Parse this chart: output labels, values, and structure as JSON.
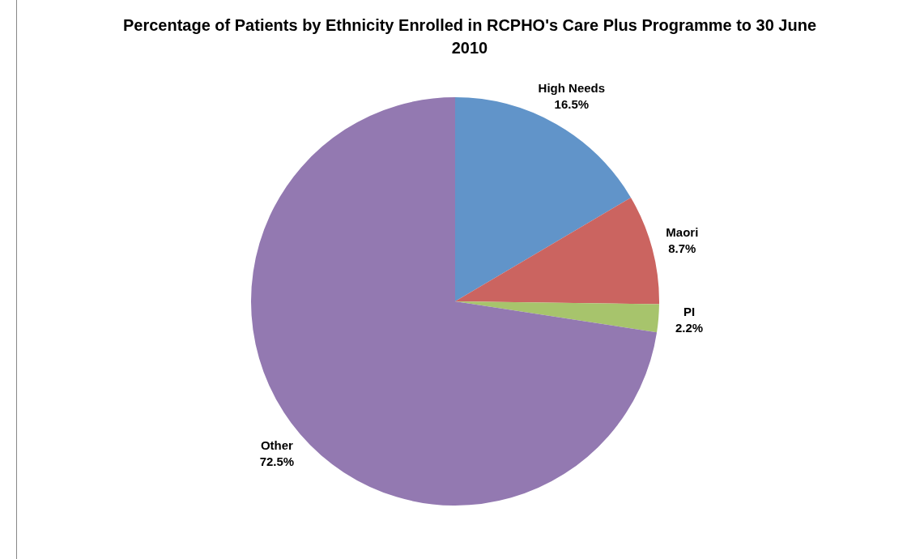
{
  "chart_data": {
    "type": "pie",
    "title": "Percentage of Patients by Ethnicity Enrolled in RCPHO's Care Plus Programme to 30 June 2010",
    "categories": [
      "High Needs",
      "Maori",
      "PI",
      "Other"
    ],
    "values": [
      16.5,
      8.7,
      2.2,
      72.5
    ],
    "colors": [
      "#6194c9",
      "#cb6460",
      "#a7c46c",
      "#9379b1"
    ],
    "value_labels": [
      "16.5%",
      "8.7%",
      "2.2%",
      "72.5%"
    ],
    "legend": false
  }
}
